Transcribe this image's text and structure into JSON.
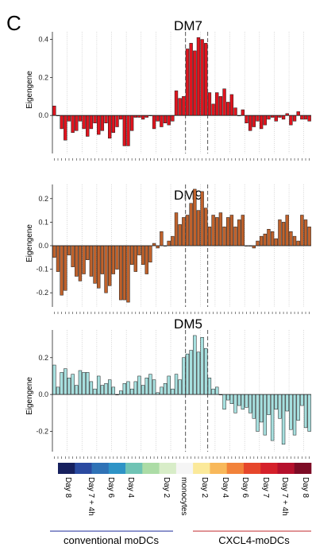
{
  "panel_letter": "C",
  "color_legend": {
    "colors": [
      "#16205e",
      "#2a4aa0",
      "#2f72b6",
      "#2e93c6",
      "#6fc3b4",
      "#acdca6",
      "#d8edc8",
      "#f5f5f5",
      "#fbe99a",
      "#f8b85a",
      "#f2823a",
      "#e6462b",
      "#d5202a",
      "#b5102c",
      "#7d0b25"
    ],
    "labels": [
      "Day 8",
      "Day 7 + 4h",
      "Day 6",
      "Day 4",
      "Day 2",
      "monocytes",
      "Day 2",
      "Day 4",
      "Day 6",
      "Day 7",
      "Day 7 + 4h",
      "Day 8"
    ]
  },
  "groups": {
    "left": "conventional moDCs",
    "left_color": "#1a2a9a",
    "right": "CXCL4-moDCs",
    "right_color": "#c0282e"
  },
  "chart_data": [
    {
      "type": "bar",
      "title": "DM7",
      "ylabel": "Eigengene",
      "ylim": [
        -0.2,
        0.44
      ],
      "yticks": [
        -0.0,
        0.2,
        0.4
      ],
      "ytick_labels": [
        "0.0",
        "0.2",
        "0.4"
      ],
      "color": "#e0141e",
      "separator_positions": [
        36,
        42
      ],
      "values": [
        0.05,
        0.0,
        -0.07,
        -0.13,
        -0.03,
        -0.09,
        -0.08,
        -0.03,
        -0.07,
        -0.11,
        -0.07,
        -0.04,
        -0.1,
        -0.08,
        -0.04,
        -0.12,
        -0.09,
        -0.06,
        -0.02,
        -0.16,
        -0.16,
        -0.08,
        -0.01,
        -0.01,
        -0.02,
        -0.01,
        0.0,
        -0.07,
        -0.03,
        -0.06,
        -0.04,
        -0.05,
        -0.03,
        0.13,
        0.09,
        0.1,
        0.35,
        0.38,
        0.34,
        0.41,
        0.4,
        0.38,
        0.12,
        0.06,
        0.12,
        0.1,
        0.14,
        0.07,
        0.11,
        0.04,
        0.0,
        0.03,
        -0.04,
        -0.08,
        -0.06,
        -0.03,
        -0.07,
        -0.05,
        -0.02,
        -0.01,
        -0.03,
        -0.01,
        -0.02,
        0.01,
        -0.05,
        -0.03,
        0.02,
        -0.02,
        -0.02,
        -0.03
      ]
    },
    {
      "type": "bar",
      "title": "DM9",
      "ylabel": "Eigengene",
      "ylim": [
        -0.26,
        0.26
      ],
      "yticks": [
        -0.2,
        -0.1,
        0.0,
        0.1,
        0.2
      ],
      "ytick_labels": [
        "-0.2",
        "-0.1",
        "0.0",
        "0.1",
        "0.2"
      ],
      "color": "#c0622c",
      "separator_positions": [
        36,
        42
      ],
      "values": [
        -0.05,
        -0.11,
        -0.21,
        -0.19,
        -0.04,
        -0.09,
        -0.13,
        -0.15,
        -0.12,
        -0.06,
        -0.13,
        -0.16,
        -0.18,
        -0.12,
        -0.2,
        -0.17,
        -0.12,
        -0.1,
        -0.23,
        -0.23,
        -0.24,
        -0.08,
        -0.11,
        -0.04,
        -0.08,
        -0.12,
        -0.07,
        0.01,
        -0.01,
        0.06,
        0.0,
        0.02,
        0.04,
        0.14,
        0.09,
        0.12,
        0.13,
        0.18,
        0.24,
        0.15,
        0.23,
        0.16,
        0.08,
        0.13,
        0.12,
        0.14,
        0.08,
        0.12,
        0.13,
        0.08,
        0.11,
        0.13,
        0.0,
        0.0,
        -0.01,
        0.02,
        0.04,
        0.05,
        0.07,
        0.06,
        0.03,
        0.11,
        0.1,
        0.13,
        0.06,
        0.04,
        0.02,
        0.13,
        0.11,
        0.08
      ]
    },
    {
      "type": "bar",
      "title": "DM5",
      "ylabel": "Eigengene",
      "ylim": [
        -0.31,
        0.35
      ],
      "yticks": [
        -0.2,
        0.0,
        0.2
      ],
      "ytick_labels": [
        "-0.2",
        "0.0",
        "0.2"
      ],
      "color": "#a7e0df",
      "separator_positions": [
        36,
        42
      ],
      "values": [
        0.16,
        0.04,
        0.12,
        0.14,
        0.09,
        0.11,
        0.05,
        0.13,
        0.12,
        0.12,
        0.07,
        0.03,
        0.1,
        0.05,
        0.06,
        0.08,
        0.04,
        0.0,
        0.02,
        0.06,
        0.07,
        0.03,
        0.07,
        0.1,
        0.05,
        0.09,
        0.11,
        0.08,
        0.01,
        0.04,
        0.06,
        0.1,
        0.03,
        0.11,
        0.08,
        0.2,
        0.22,
        0.24,
        0.32,
        0.23,
        0.31,
        0.25,
        0.09,
        0.03,
        0.04,
        0.0,
        -0.08,
        -0.03,
        -0.05,
        -0.1,
        -0.06,
        -0.08,
        -0.07,
        -0.1,
        -0.13,
        -0.2,
        -0.15,
        -0.22,
        -0.11,
        -0.25,
        -0.08,
        -0.13,
        -0.27,
        -0.09,
        -0.19,
        -0.22,
        -0.14,
        -0.06,
        -0.18,
        -0.2
      ]
    }
  ]
}
